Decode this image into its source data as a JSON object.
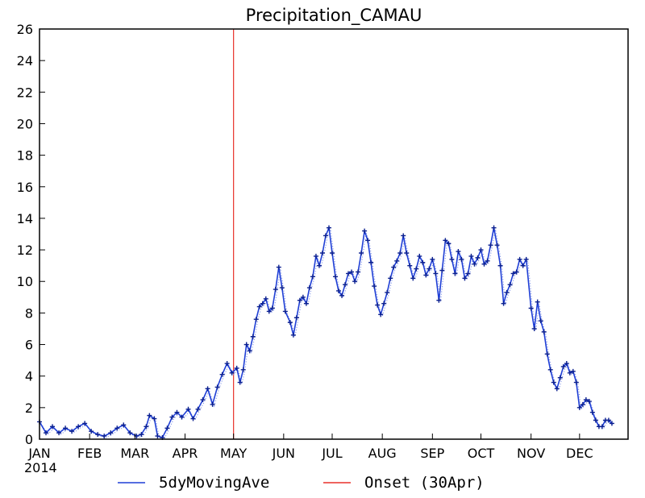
{
  "chart_data": {
    "type": "line",
    "title": "Precipitation_CAMAU",
    "xlabel": "",
    "ylabel": "",
    "year_label": "2014",
    "ylim": [
      0,
      26
    ],
    "y_ticks": [
      "0",
      "2",
      "4",
      "6",
      "8",
      "10",
      "12",
      "14",
      "16",
      "18",
      "20",
      "22",
      "24",
      "26"
    ],
    "x_ticks": [
      {
        "label": "JAN",
        "date": "2014-01-01"
      },
      {
        "label": "FEB",
        "date": "2014-02-01"
      },
      {
        "label": "MAR",
        "date": "2014-03-01"
      },
      {
        "label": "APR",
        "date": "2014-04-01"
      },
      {
        "label": "MAY",
        "date": "2014-05-01"
      },
      {
        "label": "JUN",
        "date": "2014-06-01"
      },
      {
        "label": "JUL",
        "date": "2014-07-01"
      },
      {
        "label": "AUG",
        "date": "2014-08-01"
      },
      {
        "label": "SEP",
        "date": "2014-09-01"
      },
      {
        "label": "OCT",
        "date": "2014-10-01"
      },
      {
        "label": "NOV",
        "date": "2014-11-01"
      },
      {
        "label": "DEC",
        "date": "2014-12-01"
      }
    ],
    "xlim": [
      "2014-01-01",
      "2014-12-31"
    ],
    "series": [
      {
        "name": "5dyMovingAve",
        "color": "#1f3fd6",
        "marker": "plus",
        "points": [
          [
            "2014-01-01",
            1.1
          ],
          [
            "2014-01-05",
            0.4
          ],
          [
            "2014-01-09",
            0.8
          ],
          [
            "2014-01-13",
            0.4
          ],
          [
            "2014-01-17",
            0.7
          ],
          [
            "2014-01-21",
            0.5
          ],
          [
            "2014-01-25",
            0.8
          ],
          [
            "2014-01-29",
            1.0
          ],
          [
            "2014-02-02",
            0.5
          ],
          [
            "2014-02-06",
            0.3
          ],
          [
            "2014-02-10",
            0.2
          ],
          [
            "2014-02-14",
            0.4
          ],
          [
            "2014-02-18",
            0.7
          ],
          [
            "2014-02-22",
            0.9
          ],
          [
            "2014-02-26",
            0.4
          ],
          [
            "2014-03-02",
            0.2
          ],
          [
            "2014-03-05",
            0.3
          ],
          [
            "2014-03-08",
            0.8
          ],
          [
            "2014-03-10",
            1.5
          ],
          [
            "2014-03-13",
            1.3
          ],
          [
            "2014-03-15",
            0.2
          ],
          [
            "2014-03-18",
            0.1
          ],
          [
            "2014-03-21",
            0.7
          ],
          [
            "2014-03-24",
            1.4
          ],
          [
            "2014-03-27",
            1.7
          ],
          [
            "2014-03-30",
            1.4
          ],
          [
            "2014-04-03",
            1.9
          ],
          [
            "2014-04-06",
            1.3
          ],
          [
            "2014-04-09",
            1.9
          ],
          [
            "2014-04-12",
            2.5
          ],
          [
            "2014-04-15",
            3.2
          ],
          [
            "2014-04-18",
            2.2
          ],
          [
            "2014-04-21",
            3.3
          ],
          [
            "2014-04-24",
            4.1
          ],
          [
            "2014-04-27",
            4.8
          ],
          [
            "2014-04-30",
            4.2
          ],
          [
            "2014-05-03",
            4.5
          ],
          [
            "2014-05-05",
            3.6
          ],
          [
            "2014-05-07",
            4.4
          ],
          [
            "2014-05-09",
            6.0
          ],
          [
            "2014-05-11",
            5.6
          ],
          [
            "2014-05-13",
            6.5
          ],
          [
            "2014-05-15",
            7.6
          ],
          [
            "2014-05-17",
            8.4
          ],
          [
            "2014-05-19",
            8.6
          ],
          [
            "2014-05-21",
            8.9
          ],
          [
            "2014-05-23",
            8.1
          ],
          [
            "2014-05-25",
            8.3
          ],
          [
            "2014-05-27",
            9.5
          ],
          [
            "2014-05-29",
            10.9
          ],
          [
            "2014-05-31",
            9.6
          ],
          [
            "2014-06-02",
            8.1
          ],
          [
            "2014-06-05",
            7.4
          ],
          [
            "2014-06-07",
            6.6
          ],
          [
            "2014-06-09",
            7.7
          ],
          [
            "2014-06-11",
            8.8
          ],
          [
            "2014-06-13",
            9.0
          ],
          [
            "2014-06-15",
            8.6
          ],
          [
            "2014-06-17",
            9.6
          ],
          [
            "2014-06-19",
            10.3
          ],
          [
            "2014-06-21",
            11.6
          ],
          [
            "2014-06-23",
            11.0
          ],
          [
            "2014-06-25",
            11.8
          ],
          [
            "2014-06-27",
            12.9
          ],
          [
            "2014-06-29",
            13.4
          ],
          [
            "2014-07-01",
            11.8
          ],
          [
            "2014-07-03",
            10.3
          ],
          [
            "2014-07-05",
            9.4
          ],
          [
            "2014-07-07",
            9.1
          ],
          [
            "2014-07-09",
            9.8
          ],
          [
            "2014-07-11",
            10.5
          ],
          [
            "2014-07-13",
            10.6
          ],
          [
            "2014-07-15",
            10.0
          ],
          [
            "2014-07-17",
            10.6
          ],
          [
            "2014-07-19",
            11.8
          ],
          [
            "2014-07-21",
            13.2
          ],
          [
            "2014-07-23",
            12.6
          ],
          [
            "2014-07-25",
            11.2
          ],
          [
            "2014-07-27",
            9.7
          ],
          [
            "2014-07-29",
            8.5
          ],
          [
            "2014-07-31",
            7.9
          ],
          [
            "2014-08-02",
            8.6
          ],
          [
            "2014-08-04",
            9.3
          ],
          [
            "2014-08-06",
            10.2
          ],
          [
            "2014-08-08",
            10.9
          ],
          [
            "2014-08-10",
            11.3
          ],
          [
            "2014-08-12",
            11.8
          ],
          [
            "2014-08-14",
            12.9
          ],
          [
            "2014-08-16",
            11.8
          ],
          [
            "2014-08-18",
            11.0
          ],
          [
            "2014-08-20",
            10.2
          ],
          [
            "2014-08-22",
            10.8
          ],
          [
            "2014-08-24",
            11.6
          ],
          [
            "2014-08-26",
            11.2
          ],
          [
            "2014-08-28",
            10.4
          ],
          [
            "2014-08-30",
            10.8
          ],
          [
            "2014-09-01",
            11.4
          ],
          [
            "2014-09-03",
            10.5
          ],
          [
            "2014-09-05",
            8.8
          ],
          [
            "2014-09-07",
            10.7
          ],
          [
            "2014-09-09",
            12.6
          ],
          [
            "2014-09-11",
            12.4
          ],
          [
            "2014-09-13",
            11.4
          ],
          [
            "2014-09-15",
            10.5
          ],
          [
            "2014-09-17",
            11.9
          ],
          [
            "2014-09-19",
            11.4
          ],
          [
            "2014-09-21",
            10.2
          ],
          [
            "2014-09-23",
            10.5
          ],
          [
            "2014-09-25",
            11.6
          ],
          [
            "2014-09-27",
            11.1
          ],
          [
            "2014-09-29",
            11.5
          ],
          [
            "2014-10-01",
            12.0
          ],
          [
            "2014-10-03",
            11.1
          ],
          [
            "2014-10-05",
            11.3
          ],
          [
            "2014-10-07",
            12.3
          ],
          [
            "2014-10-09",
            13.4
          ],
          [
            "2014-10-11",
            12.3
          ],
          [
            "2014-10-13",
            11.0
          ],
          [
            "2014-10-15",
            8.6
          ],
          [
            "2014-10-17",
            9.3
          ],
          [
            "2014-10-19",
            9.8
          ],
          [
            "2014-10-21",
            10.5
          ],
          [
            "2014-10-23",
            10.6
          ],
          [
            "2014-10-25",
            11.4
          ],
          [
            "2014-10-27",
            11.0
          ],
          [
            "2014-10-29",
            11.4
          ],
          [
            "2014-11-01",
            8.3
          ],
          [
            "2014-11-03",
            7.0
          ],
          [
            "2014-11-05",
            8.7
          ],
          [
            "2014-11-07",
            7.5
          ],
          [
            "2014-11-09",
            6.8
          ],
          [
            "2014-11-11",
            5.4
          ],
          [
            "2014-11-13",
            4.4
          ],
          [
            "2014-11-15",
            3.6
          ],
          [
            "2014-11-17",
            3.2
          ],
          [
            "2014-11-19",
            3.9
          ],
          [
            "2014-11-21",
            4.6
          ],
          [
            "2014-11-23",
            4.8
          ],
          [
            "2014-11-25",
            4.2
          ],
          [
            "2014-11-27",
            4.3
          ],
          [
            "2014-11-29",
            3.6
          ],
          [
            "2014-12-01",
            2.0
          ],
          [
            "2014-12-03",
            2.2
          ],
          [
            "2014-12-05",
            2.5
          ],
          [
            "2014-12-07",
            2.4
          ],
          [
            "2014-12-09",
            1.7
          ],
          [
            "2014-12-11",
            1.2
          ],
          [
            "2014-12-13",
            0.8
          ],
          [
            "2014-12-15",
            0.8
          ],
          [
            "2014-12-17",
            1.2
          ],
          [
            "2014-12-19",
            1.2
          ],
          [
            "2014-12-21",
            1.0
          ]
        ]
      },
      {
        "name": "Onset (30Apr)",
        "color": "#e8302a",
        "vline_date": "2014-05-01"
      }
    ],
    "grid": false,
    "legend_position": "bottom"
  }
}
